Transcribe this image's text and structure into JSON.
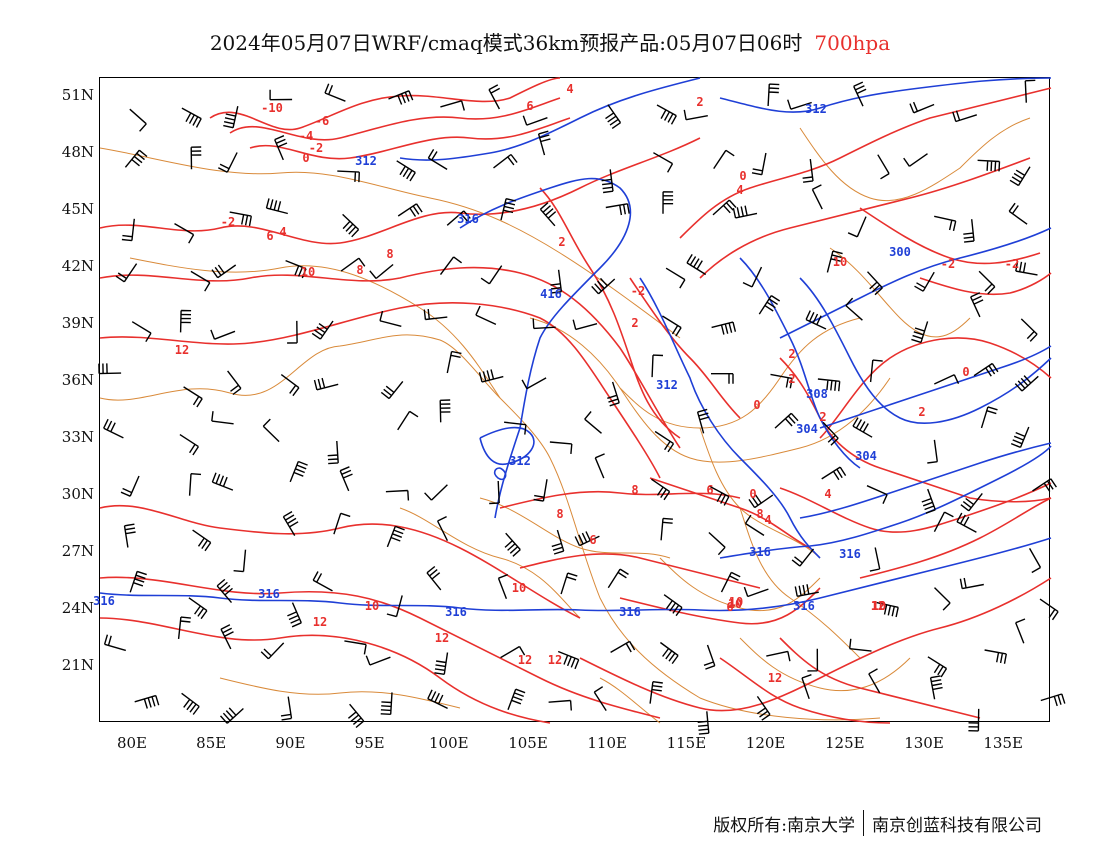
{
  "title": {
    "text": "2024年05月07日WRF/cmaq模式36km预报产品:05月07日06时",
    "level": "700hpa"
  },
  "colors": {
    "temperature": "#e8302d",
    "geopotential": "#1f3fd6",
    "boundaries": "#d98a3a",
    "wind": "#000000"
  },
  "axes": {
    "lat_ticks": [
      "51N",
      "48N",
      "45N",
      "42N",
      "39N",
      "36N",
      "33N",
      "30N",
      "27N",
      "24N",
      "21N"
    ],
    "lon_ticks": [
      "80E",
      "85E",
      "90E",
      "95E",
      "100E",
      "105E",
      "110E",
      "115E",
      "120E",
      "125E",
      "130E",
      "135E"
    ]
  },
  "map_data": {
    "lon_range": [
      78,
      138
    ],
    "lat_range": [
      18,
      52
    ],
    "temperature_labels": [
      "-10",
      "-6",
      "-4",
      "-2",
      "0",
      "6",
      "4",
      "2",
      "-2",
      "6",
      "4",
      "8",
      "10",
      "8",
      "12",
      "2",
      "-2",
      "0",
      "4",
      "10",
      "2",
      "0",
      "2",
      "0",
      "2",
      "2",
      "-2",
      "4",
      "6",
      "8",
      "8",
      "6",
      "6",
      "10",
      "10",
      "10",
      "12",
      "12",
      "12",
      "12",
      "10",
      "8",
      "4",
      "12",
      "10",
      "12",
      "-2",
      "0",
      "2"
    ],
    "geopotential_labels": [
      "312",
      "312",
      "316",
      "416",
      "312",
      "300",
      "308",
      "304",
      "304",
      "316",
      "316",
      "316",
      "316",
      "316",
      "312",
      "316",
      "316"
    ]
  },
  "footer": {
    "copyright": "版权所有:南京大学",
    "company": "南京创蓝科技有限公司"
  }
}
